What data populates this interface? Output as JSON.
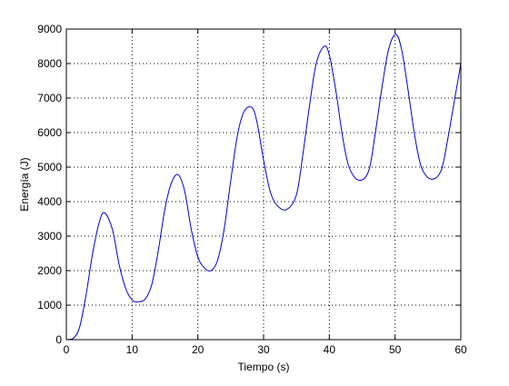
{
  "chart_data": {
    "type": "line",
    "title": "",
    "xlabel": "Tiempo (s)",
    "ylabel": "Energía (J)",
    "xlim": [
      0,
      60
    ],
    "ylim": [
      0,
      9000
    ],
    "xticks": [
      0,
      10,
      20,
      30,
      40,
      50,
      60
    ],
    "yticks": [
      0,
      1000,
      2000,
      3000,
      4000,
      5000,
      6000,
      7000,
      8000,
      9000
    ],
    "xtick_labels": [
      "0",
      "10",
      "20",
      "30",
      "40",
      "50",
      "60"
    ],
    "ytick_labels": [
      "0",
      "1000",
      "2000",
      "3000",
      "4000",
      "5000",
      "6000",
      "7000",
      "8000",
      "9000"
    ],
    "grid": true,
    "grid_style": "dotted",
    "series": [
      {
        "color": "#0000cc",
        "x": [
          0,
          1,
          2,
          3,
          4,
          5,
          5.8,
          7,
          8,
          9,
          10,
          11,
          12,
          13,
          14,
          15,
          16,
          17,
          18,
          19,
          20,
          21,
          22,
          23,
          24,
          25,
          26,
          27,
          28.2,
          29,
          30,
          31,
          32,
          33.5,
          35,
          36,
          37,
          38,
          39.2,
          40,
          41,
          42,
          43,
          44.5,
          46,
          47,
          48,
          49,
          50.1,
          51,
          52,
          53,
          54,
          55.5,
          57,
          58,
          59,
          60
        ],
        "y": [
          0,
          30,
          350,
          1300,
          2500,
          3400,
          3680,
          3200,
          2200,
          1500,
          1150,
          1100,
          1180,
          1600,
          2600,
          3800,
          4550,
          4780,
          4300,
          3200,
          2400,
          2080,
          2000,
          2300,
          3200,
          4600,
          5900,
          6600,
          6730,
          6300,
          5200,
          4300,
          3900,
          3770,
          4200,
          5400,
          6800,
          8000,
          8500,
          8250,
          7200,
          5900,
          5000,
          4620,
          4900,
          6000,
          7300,
          8400,
          8850,
          8400,
          7200,
          5900,
          5000,
          4650,
          4900,
          5800,
          6900,
          8000
        ]
      }
    ]
  }
}
